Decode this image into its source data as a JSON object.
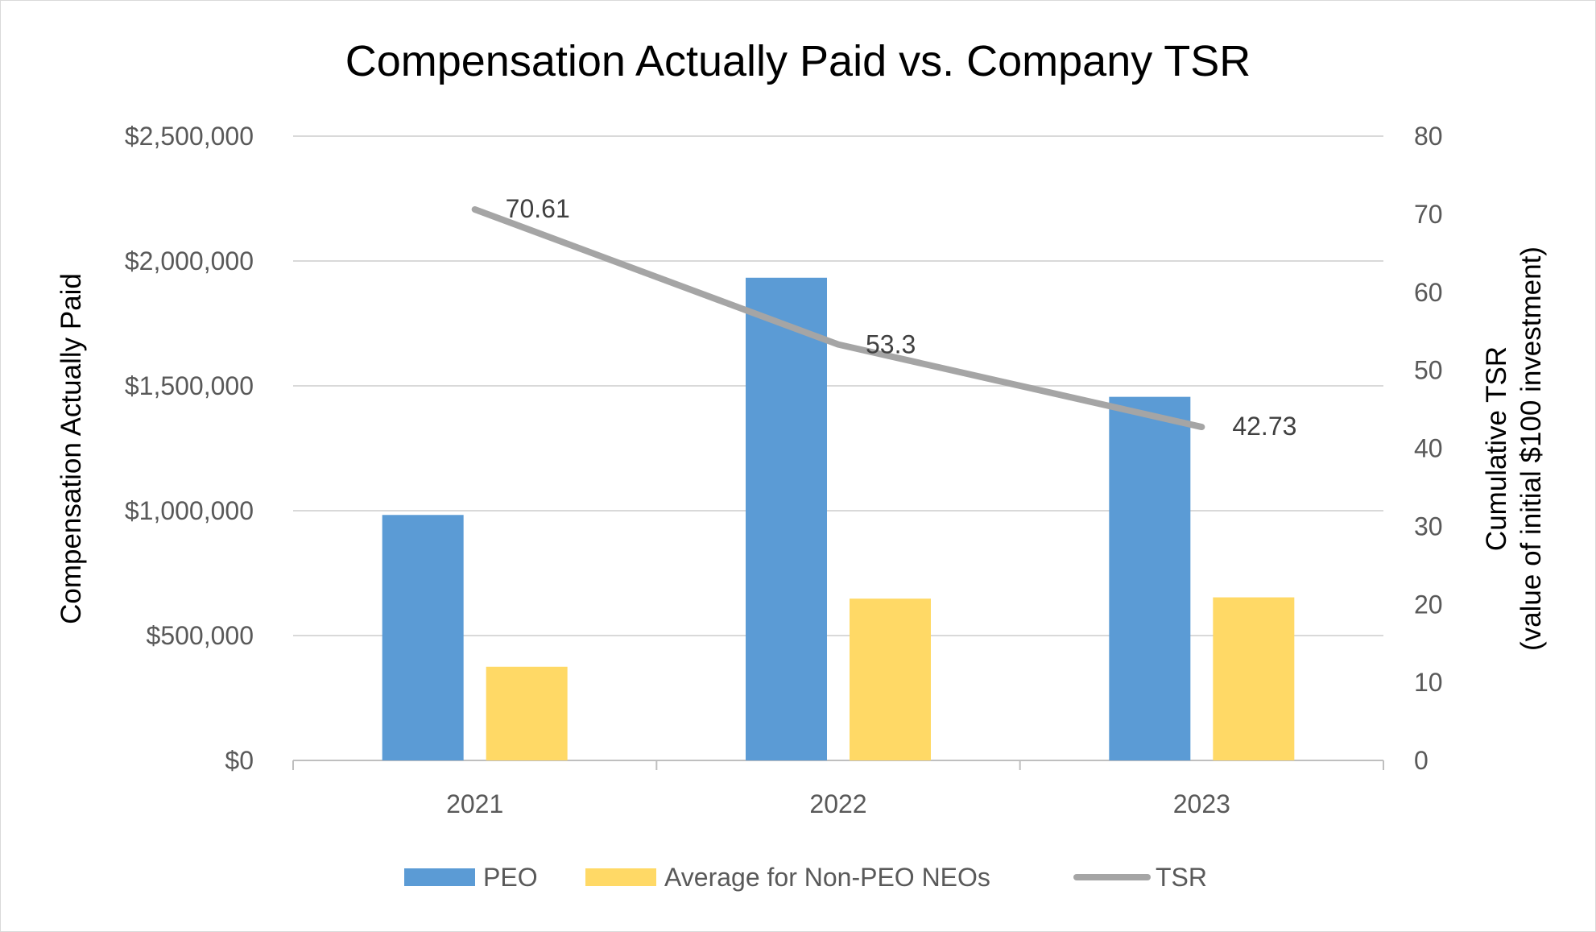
{
  "chart_data": {
    "type": "bar+line",
    "title": "Compensation Actually Paid vs. Company TSR",
    "categories": [
      "2021",
      "2022",
      "2023"
    ],
    "ylabel_left": "Compensation Actually Paid",
    "ylabel_right_line1": "Cumulative TSR",
    "ylabel_right_line2": "(value of initial $100 investment)",
    "ylim_left": [
      0,
      2500000
    ],
    "yticks_left": [
      "$0",
      "$500,000",
      "$1,000,000",
      "$1,500,000",
      "$2,000,000",
      "$2,500,000"
    ],
    "ylim_right": [
      0,
      80
    ],
    "yticks_right": [
      "0",
      "10",
      "20",
      "30",
      "40",
      "50",
      "60",
      "70",
      "80"
    ],
    "grid": true,
    "legend_position": "bottom",
    "series": [
      {
        "name": "PEO",
        "type": "bar",
        "axis": "left",
        "color": "#5b9bd5",
        "values": [
          983000,
          1933000,
          1456000
        ]
      },
      {
        "name": "Average for Non-PEO NEOs",
        "type": "bar",
        "axis": "left",
        "color": "#ffd966",
        "values": [
          375000,
          648000,
          653000
        ]
      },
      {
        "name": "TSR",
        "type": "line",
        "axis": "right",
        "color": "#a5a5a5",
        "values": [
          70.61,
          53.3,
          42.73
        ],
        "data_labels": [
          "70.61",
          "53.3",
          "42.73"
        ]
      }
    ]
  }
}
